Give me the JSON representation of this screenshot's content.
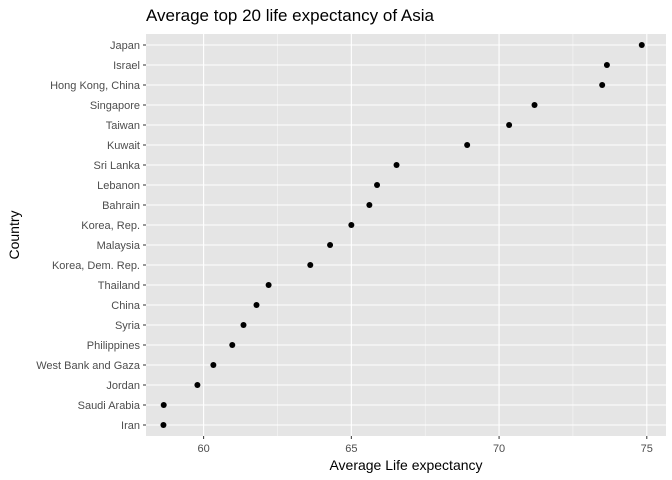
{
  "chart_data": {
    "type": "scatter",
    "title": "Average top 20 life expectancy of Asia",
    "xlabel": "Average Life expectancy",
    "ylabel": "Country",
    "xlim": [
      58.05,
      75.65
    ],
    "x_ticks": [
      60,
      65,
      70,
      75
    ],
    "grid": true,
    "categories": [
      "Japan",
      "Israel",
      "Hong Kong, China",
      "Singapore",
      "Taiwan",
      "Kuwait",
      "Sri Lanka",
      "Lebanon",
      "Bahrain",
      "Korea, Rep.",
      "Malaysia",
      "Korea, Dem. Rep.",
      "Thailand",
      "China",
      "Syria",
      "Philippines",
      "West Bank and Gaza",
      "Jordan",
      "Saudi Arabia",
      "Iran"
    ],
    "values": [
      74.83,
      73.65,
      73.49,
      71.2,
      70.34,
      68.92,
      66.53,
      65.87,
      65.61,
      65.0,
      64.28,
      63.61,
      62.2,
      61.79,
      61.35,
      60.97,
      60.33,
      59.79,
      58.65,
      58.64
    ],
    "colors": {
      "panel": "#e5e5e5",
      "grid_major": "#ffffff",
      "point": "#000000",
      "tick_label": "#4d4d4d"
    }
  }
}
